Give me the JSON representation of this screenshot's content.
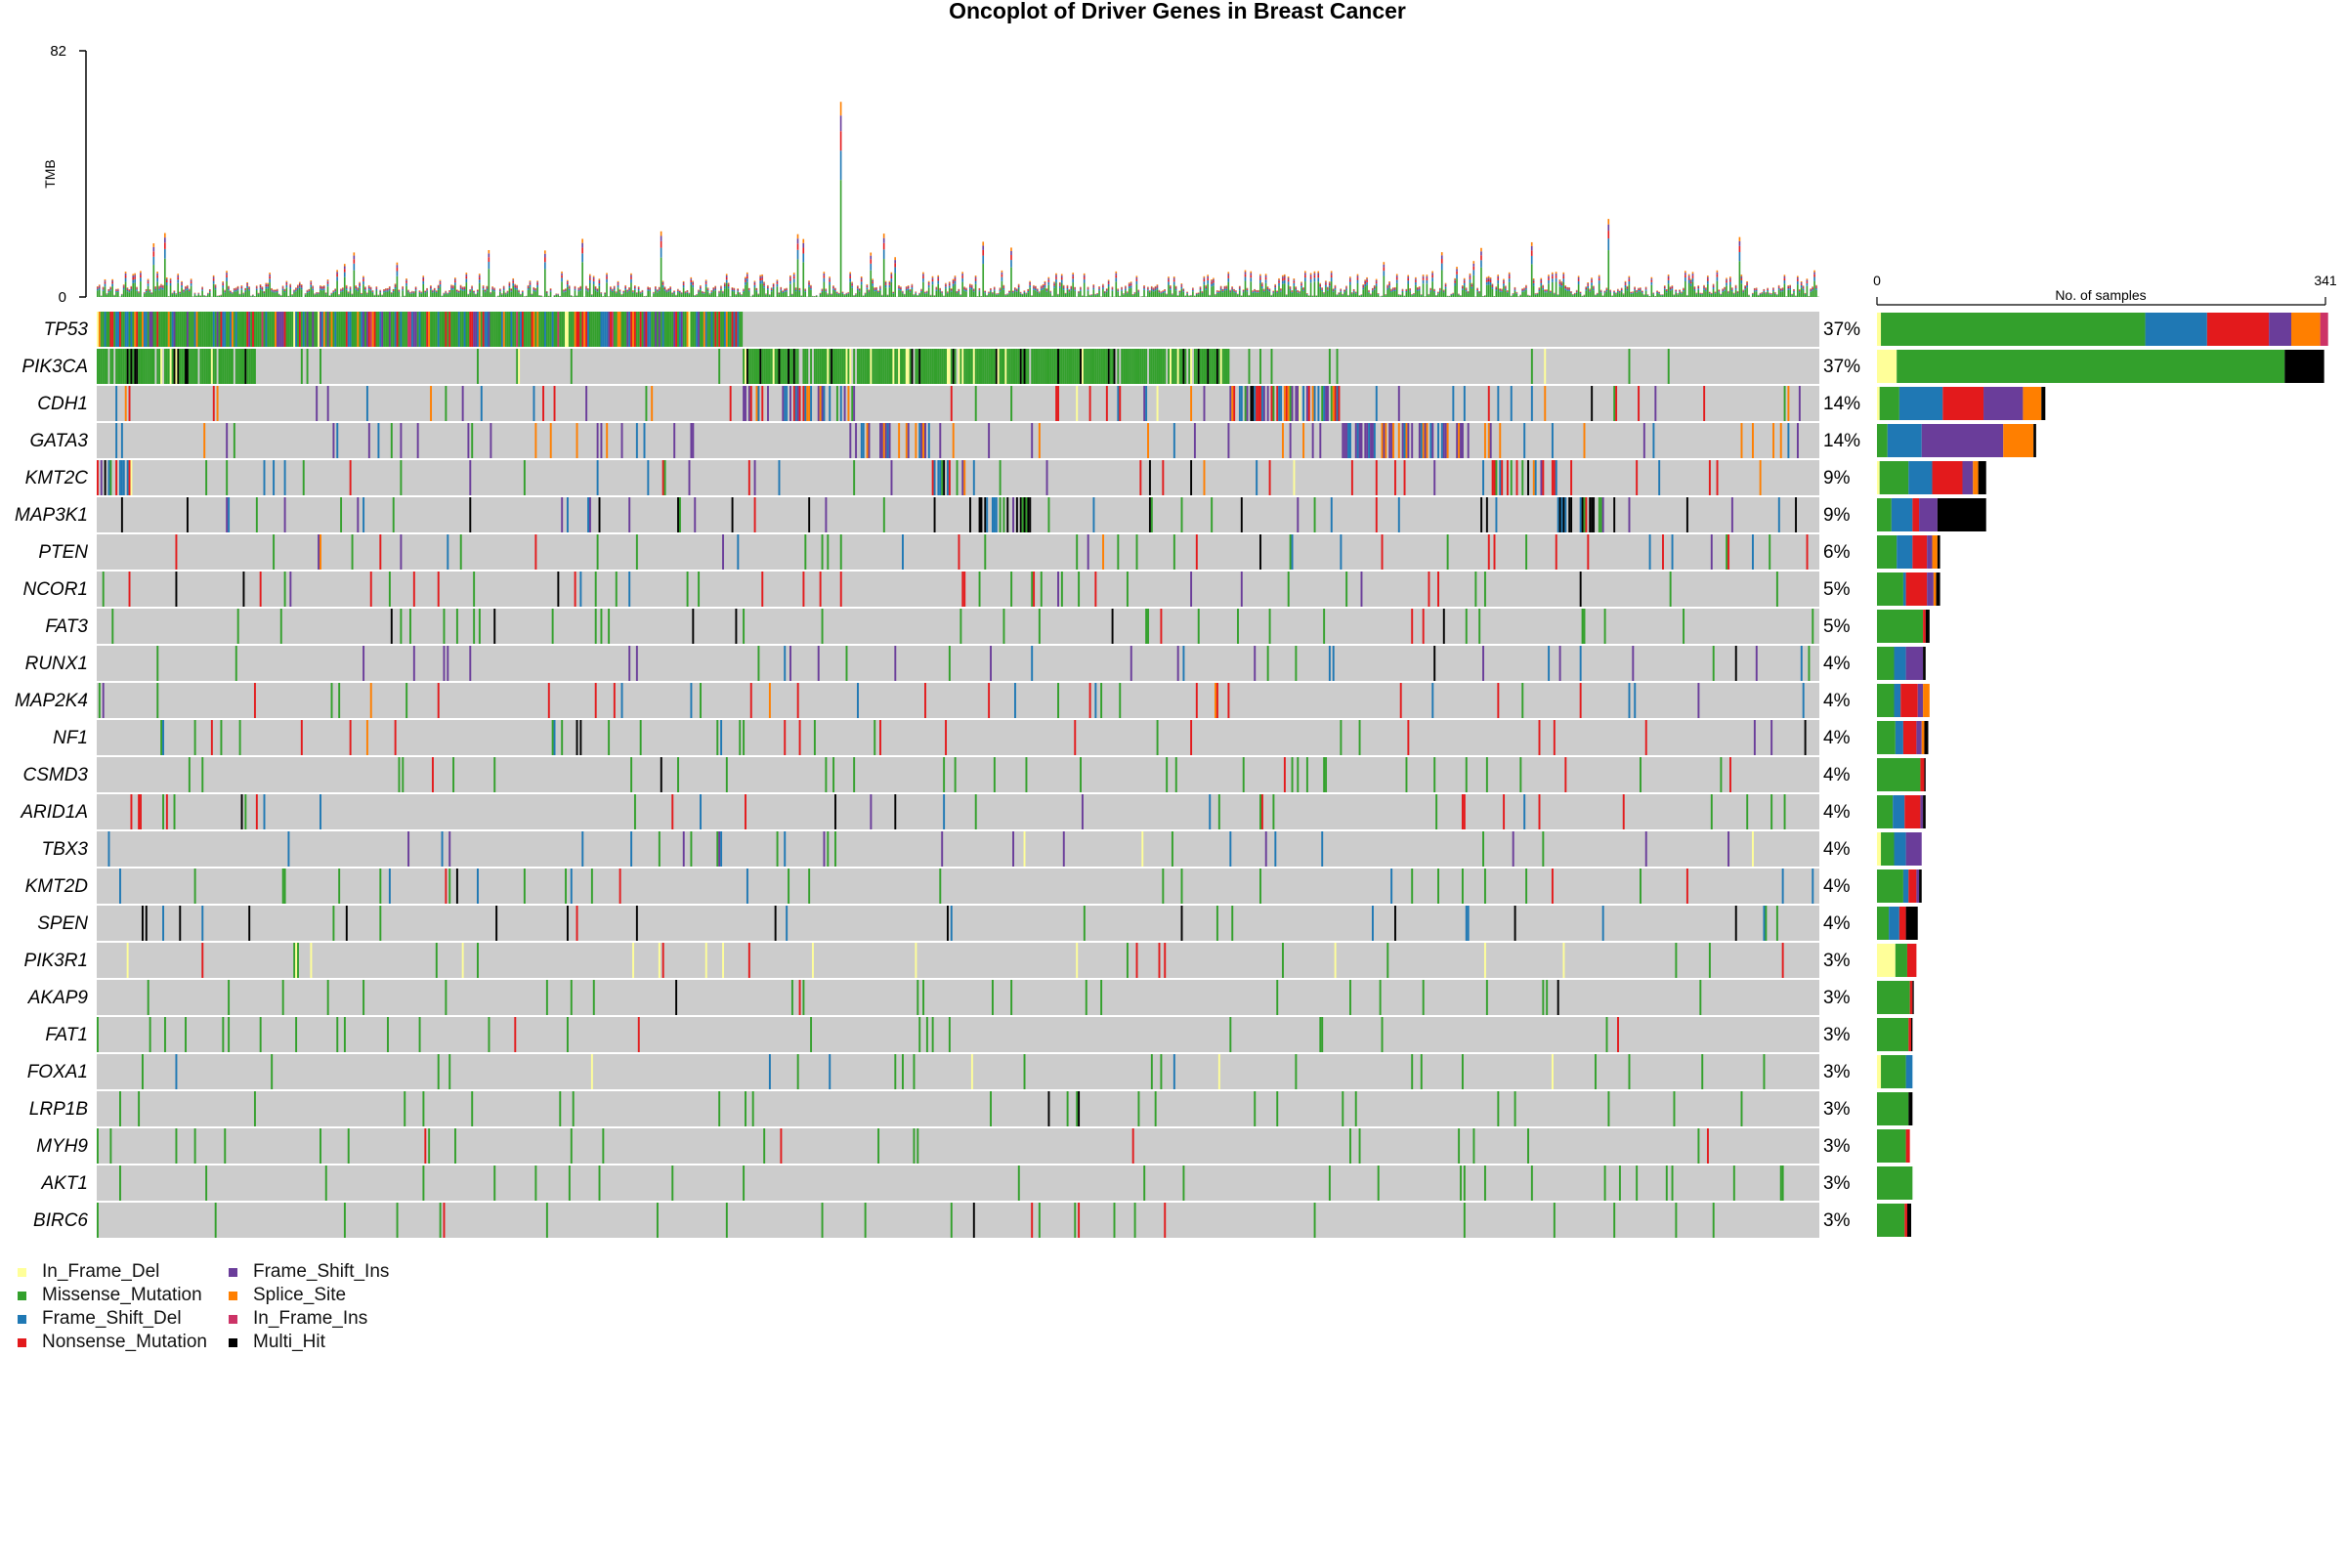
{
  "chart_data": {
    "type": "heatmap",
    "title": "Oncoplot of Driver Genes in Breast Cancer",
    "tmb": {
      "ylabel": "TMB",
      "ylim": [
        0,
        82
      ],
      "ticks": [
        "82",
        "0"
      ]
    },
    "side_bar": {
      "xlabel": "No. of samples",
      "xlim": [
        0,
        341
      ],
      "ticks": [
        "0",
        "341"
      ]
    },
    "variant_classes": [
      {
        "name": "In_Frame_Del",
        "color": "#ffff99"
      },
      {
        "name": "Missense_Mutation",
        "color": "#33a02c"
      },
      {
        "name": "Frame_Shift_Del",
        "color": "#1f78b4"
      },
      {
        "name": "Nonsense_Mutation",
        "color": "#e31a1c"
      },
      {
        "name": "Frame_Shift_Ins",
        "color": "#6a3d9a"
      },
      {
        "name": "Splice_Site",
        "color": "#ff7f00"
      },
      {
        "name": "In_Frame_Ins",
        "color": "#cc3366"
      },
      {
        "name": "Multi_Hit",
        "color": "#000000"
      }
    ],
    "genes": [
      {
        "name": "TP53",
        "pct": "37%",
        "counts": [
          3,
          201,
          47,
          47,
          17,
          22,
          6,
          0
        ]
      },
      {
        "name": "PIK3CA",
        "pct": "37%",
        "counts": [
          15,
          295,
          0,
          0,
          0,
          0,
          0,
          30
        ]
      },
      {
        "name": "CDH1",
        "pct": "14%",
        "counts": [
          2,
          15,
          33,
          31,
          30,
          14,
          0,
          3
        ]
      },
      {
        "name": "GATA3",
        "pct": "14%",
        "counts": [
          0,
          8,
          26,
          0,
          62,
          23,
          0,
          2
        ]
      },
      {
        "name": "KMT2C",
        "pct": "9%",
        "counts": [
          2,
          22,
          18,
          23,
          8,
          4,
          0,
          6
        ]
      },
      {
        "name": "MAP3K1",
        "pct": "9%",
        "counts": [
          0,
          11,
          16,
          5,
          14,
          0,
          0,
          37
        ]
      },
      {
        "name": "PTEN",
        "pct": "6%",
        "counts": [
          0,
          15,
          12,
          11,
          4,
          4,
          0,
          2
        ]
      },
      {
        "name": "NCOR1",
        "pct": "5%",
        "counts": [
          0,
          20,
          2,
          16,
          5,
          2,
          0,
          3
        ]
      },
      {
        "name": "FAT3",
        "pct": "5%",
        "counts": [
          0,
          35,
          0,
          2,
          0,
          0,
          0,
          3
        ]
      },
      {
        "name": "RUNX1",
        "pct": "4%",
        "counts": [
          0,
          13,
          9,
          0,
          13,
          0,
          0,
          2
        ]
      },
      {
        "name": "MAP2K4",
        "pct": "4%",
        "counts": [
          0,
          13,
          5,
          13,
          4,
          5,
          0,
          0
        ]
      },
      {
        "name": "NF1",
        "pct": "4%",
        "counts": [
          0,
          14,
          6,
          10,
          4,
          2,
          0,
          3
        ]
      },
      {
        "name": "CSMD3",
        "pct": "4%",
        "counts": [
          0,
          33,
          0,
          3,
          0,
          0,
          0,
          1
        ]
      },
      {
        "name": "ARID1A",
        "pct": "4%",
        "counts": [
          0,
          12,
          9,
          12,
          2,
          0,
          0,
          2
        ]
      },
      {
        "name": "TBX3",
        "pct": "4%",
        "counts": [
          3,
          10,
          9,
          0,
          12,
          0,
          0,
          0
        ]
      },
      {
        "name": "KMT2D",
        "pct": "4%",
        "counts": [
          0,
          20,
          4,
          6,
          2,
          0,
          0,
          2
        ]
      },
      {
        "name": "SPEN",
        "pct": "4%",
        "counts": [
          0,
          9,
          8,
          5,
          0,
          0,
          0,
          9
        ]
      },
      {
        "name": "PIK3R1",
        "pct": "3%",
        "counts": [
          14,
          9,
          0,
          7,
          0,
          0,
          0,
          0
        ]
      },
      {
        "name": "AKAP9",
        "pct": "3%",
        "counts": [
          0,
          25,
          0,
          2,
          0,
          0,
          0,
          1
        ]
      },
      {
        "name": "FAT1",
        "pct": "3%",
        "counts": [
          0,
          24,
          0,
          2,
          0,
          0,
          0,
          1
        ]
      },
      {
        "name": "FOXA1",
        "pct": "3%",
        "counts": [
          3,
          19,
          5,
          0,
          0,
          0,
          0,
          0
        ]
      },
      {
        "name": "LRP1B",
        "pct": "3%",
        "counts": [
          0,
          24,
          0,
          0,
          0,
          0,
          0,
          3
        ]
      },
      {
        "name": "MYH9",
        "pct": "3%",
        "counts": [
          0,
          22,
          0,
          3,
          0,
          0,
          0,
          0
        ]
      },
      {
        "name": "AKT1",
        "pct": "3%",
        "counts": [
          0,
          27,
          0,
          0,
          0,
          0,
          0,
          0
        ]
      },
      {
        "name": "BIRC6",
        "pct": "3%",
        "counts": [
          0,
          21,
          0,
          2,
          0,
          0,
          0,
          3
        ]
      }
    ]
  }
}
